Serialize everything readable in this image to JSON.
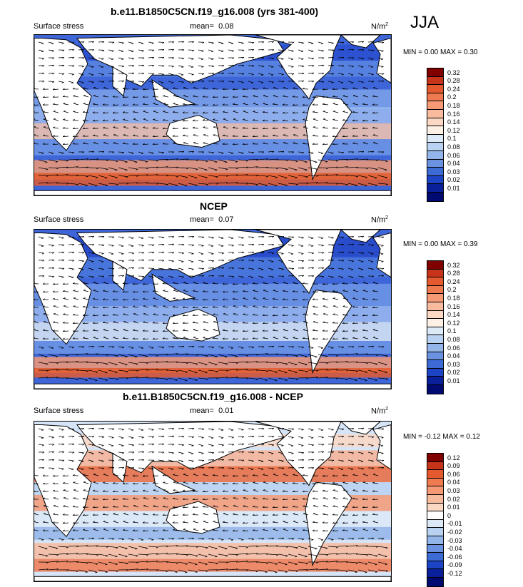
{
  "season": "JJA",
  "panels": [
    {
      "title": "b.e11.B1850C5CN.f19_g16.008 (yrs 381-400)",
      "variable": "Surface stress",
      "mean_label": "mean=",
      "mean": "0.08",
      "units": "N/m",
      "units_exp": "2",
      "minmax": "MIN =  0.00 MAX =  0.30",
      "levels": [
        "0.32",
        "0.28",
        "0.24",
        "0.2",
        "0.18",
        "0.16",
        "0.14",
        "0.12",
        "0.1",
        "0.08",
        "0.06",
        "0.04",
        "0.03",
        "0.02",
        "0.01"
      ],
      "colors": [
        "#800000",
        "#c8341a",
        "#e45a2e",
        "#f07a50",
        "#f59a75",
        "#f8bb9e",
        "#fad8c4",
        "#fdf1e6",
        "#dce9f7",
        "#b9d2f1",
        "#93b5ea",
        "#6a92e0",
        "#3d6bd6",
        "#1c44c4",
        "#0a1f9a",
        "#000a70"
      ]
    },
    {
      "title": "NCEP",
      "variable": "Surface stress",
      "mean_label": "mean=",
      "mean": "0.07",
      "units": "N/m",
      "units_exp": "2",
      "minmax": "MIN =  0.00 MAX =  0.39",
      "levels": [
        "0.32",
        "0.28",
        "0.24",
        "0.2",
        "0.18",
        "0.16",
        "0.14",
        "0.12",
        "0.1",
        "0.08",
        "0.06",
        "0.04",
        "0.03",
        "0.02",
        "0.01"
      ],
      "colors": [
        "#800000",
        "#c8341a",
        "#e45a2e",
        "#f07a50",
        "#f59a75",
        "#f8bb9e",
        "#fad8c4",
        "#fdf1e6",
        "#dce9f7",
        "#b9d2f1",
        "#93b5ea",
        "#6a92e0",
        "#3d6bd6",
        "#1c44c4",
        "#0a1f9a",
        "#000a70"
      ]
    },
    {
      "title": "b.e11.B1850C5CN.f19_g16.008 - NCEP",
      "variable": "Surface stress",
      "mean_label": "mean=",
      "mean": "0.01",
      "units": "N/m",
      "units_exp": "2",
      "minmax": "MIN = -0.12 MAX =  0.12",
      "levels": [
        "0.12",
        "0.09",
        "0.06",
        "0.04",
        "0.03",
        "0.02",
        "0.01",
        "0",
        "-0.01",
        "-0.02",
        "-0.03",
        "-0.04",
        "-0.06",
        "-0.09",
        "-0.12"
      ],
      "colors": [
        "#800000",
        "#c8341a",
        "#e45a2e",
        "#f07a50",
        "#f59a75",
        "#f8bb9e",
        "#fad8c4",
        "#ffffff",
        "#dce9f7",
        "#b9d2f1",
        "#93b5ea",
        "#6a92e0",
        "#3d6bd6",
        "#1c44c4",
        "#0a1f9a",
        "#000a70"
      ]
    }
  ]
}
